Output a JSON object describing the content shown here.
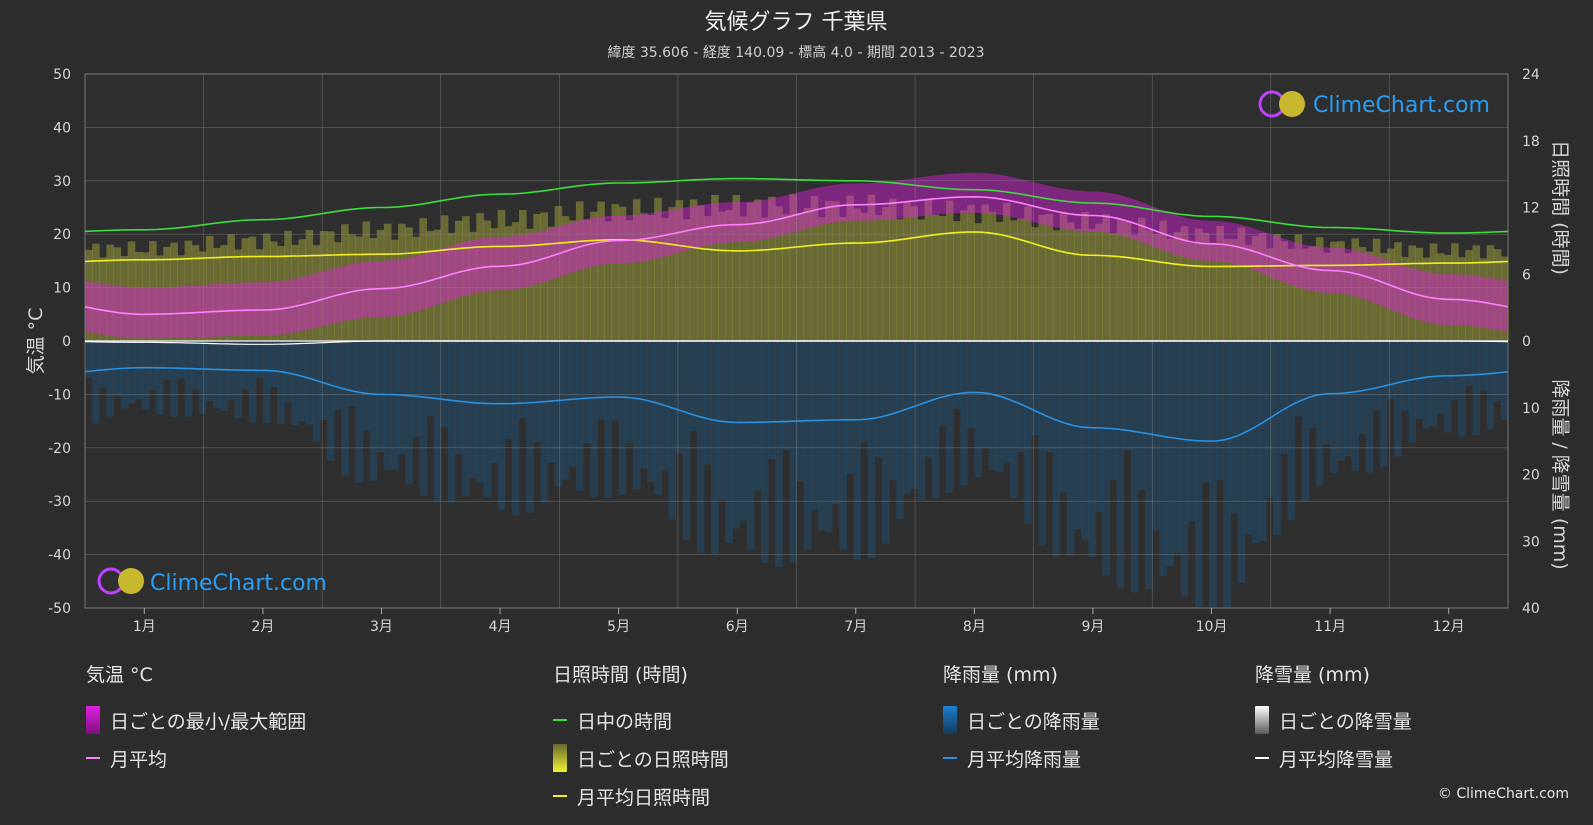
{
  "title": "気候グラフ 千葉県",
  "subtitle": "緯度 35.606 - 経度 140.09 - 標高 4.0 - 期間 2013 - 2023",
  "watermark": "ClimeChart.com",
  "copyright": "© ClimeChart.com",
  "colors": {
    "background": "#2d2d2d",
    "temp_range": "#e020e0",
    "temp_mean": "#ff80ff",
    "daylight": "#3ddc3d",
    "sunshine_bars": "#9a9a3a",
    "sunshine_mean": "#f0f020",
    "rain_bars": "#1a5f8f",
    "rain_mean": "#2a90e0",
    "snow_mean": "#ffffff",
    "brand": "#2a9df4"
  },
  "chart_data": {
    "type": "line",
    "categories": [
      "1月",
      "2月",
      "3月",
      "4月",
      "5月",
      "6月",
      "7月",
      "8月",
      "9月",
      "10月",
      "11月",
      "12月"
    ],
    "left_axis": {
      "label": "気温 °C",
      "ticks": [
        50,
        40,
        30,
        20,
        10,
        0,
        -10,
        -20,
        -30,
        -40,
        -50
      ],
      "ylim": [
        -50,
        50
      ]
    },
    "right_axis_top": {
      "label": "日照時間 (時間)",
      "ticks": [
        24,
        18,
        12,
        6,
        0
      ],
      "ylim": [
        0,
        24
      ]
    },
    "right_axis_bottom": {
      "label": "降雨量 / 降雪量 (mm)",
      "ticks": [
        0,
        10,
        20,
        30,
        40
      ],
      "ylim": [
        0,
        40
      ]
    },
    "grid": true,
    "series": [
      {
        "name": "月平均",
        "unit": "°C",
        "values": [
          5.0,
          5.8,
          9.8,
          14.0,
          18.8,
          21.8,
          25.5,
          27.0,
          23.5,
          18.2,
          13.2,
          7.8
        ]
      },
      {
        "name": "日ごとの最小/最大範囲",
        "unit": "°C",
        "min": [
          0.5,
          1.0,
          4.5,
          9.5,
          14.5,
          18.5,
          22.5,
          24.0,
          20.5,
          15.0,
          9.0,
          3.0
        ],
        "max": [
          10.0,
          11.0,
          15.0,
          19.5,
          23.5,
          26.0,
          29.5,
          31.5,
          28.0,
          22.5,
          17.5,
          12.5
        ]
      },
      {
        "name": "日中の時間",
        "unit": "時間",
        "values": [
          10.0,
          10.9,
          12.0,
          13.2,
          14.2,
          14.6,
          14.4,
          13.6,
          12.4,
          11.2,
          10.2,
          9.7
        ]
      },
      {
        "name": "日ごとの日照時間",
        "unit": "時間",
        "values": [
          9.0,
          9.8,
          10.8,
          11.8,
          12.8,
          13.2,
          13.2,
          12.6,
          11.6,
          10.4,
          9.4,
          8.8
        ]
      },
      {
        "name": "月平均日照時間",
        "unit": "時間",
        "values": [
          7.3,
          7.6,
          7.8,
          8.5,
          9.1,
          8.1,
          8.8,
          9.8,
          7.7,
          6.7,
          6.8,
          7.0
        ]
      },
      {
        "name": "月平均降雨量",
        "unit": "mm",
        "values": [
          4.0,
          4.4,
          8.0,
          9.4,
          8.4,
          12.2,
          11.8,
          7.7,
          13.0,
          15.0,
          7.9,
          5.2
        ]
      },
      {
        "name": "月平均降雪量",
        "unit": "mm",
        "values": [
          0.2,
          0.5,
          0.0,
          0.0,
          0.0,
          0.0,
          0.0,
          0.0,
          0.0,
          0.0,
          0.0,
          0.0
        ]
      }
    ]
  },
  "legend": [
    {
      "heading": "気温 °C",
      "items": [
        {
          "label": "日ごとの最小/最大範囲",
          "swatch": "rect",
          "color": "#e020e0"
        },
        {
          "label": "月平均",
          "swatch": "line",
          "color": "#ff80ff"
        }
      ]
    },
    {
      "heading": "日照時間 (時間)",
      "items": [
        {
          "label": "日中の時間",
          "swatch": "line",
          "color": "#3ddc3d"
        },
        {
          "label": "日ごとの日照時間",
          "swatch": "rect",
          "color": "#c8c840"
        },
        {
          "label": "月平均日照時間",
          "swatch": "line",
          "color": "#f0f020"
        }
      ]
    },
    {
      "heading": "降雨量 (mm)",
      "items": [
        {
          "label": "日ごとの降雨量",
          "swatch": "rect",
          "color": "#1f7fcf"
        },
        {
          "label": "月平均降雨量",
          "swatch": "line",
          "color": "#2a90e0"
        }
      ]
    },
    {
      "heading": "降雪量 (mm)",
      "items": [
        {
          "label": "日ごとの降雪量",
          "swatch": "rect",
          "color": "#dddddd"
        },
        {
          "label": "月平均降雪量",
          "swatch": "line",
          "color": "#ffffff"
        }
      ]
    }
  ]
}
